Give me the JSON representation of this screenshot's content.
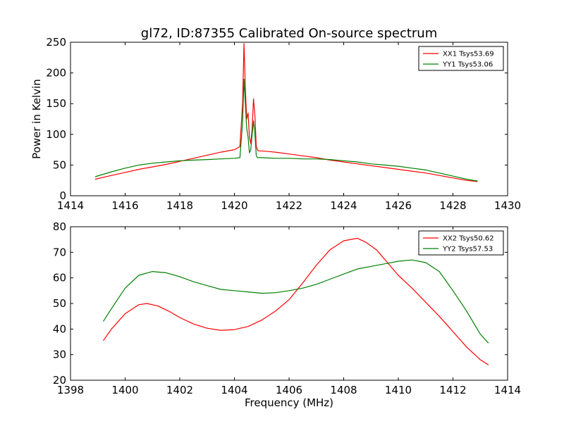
{
  "title": "gl72, ID:87355 Calibrated On-source spectrum",
  "chart_data": [
    {
      "type": "line",
      "title": "gl72, ID:87355 Calibrated On-source spectrum",
      "xlabel": "",
      "ylabel": "Power in Kelvin",
      "xlim": [
        1414,
        1430
      ],
      "ylim": [
        0,
        250
      ],
      "xticks": [
        1414,
        1416,
        1418,
        1420,
        1422,
        1424,
        1426,
        1428,
        1430
      ],
      "yticks": [
        0,
        50,
        100,
        150,
        200,
        250
      ],
      "legend": "top-right",
      "grid": false,
      "series": [
        {
          "name": "XX1 Tsys53.69",
          "color": "#ff0000",
          "x": [
            1414.9,
            1415.5,
            1416.0,
            1416.5,
            1417.0,
            1417.5,
            1418.0,
            1418.5,
            1419.0,
            1419.5,
            1420.0,
            1420.2,
            1420.3,
            1420.35,
            1420.4,
            1420.45,
            1420.5,
            1420.55,
            1420.6,
            1420.65,
            1420.7,
            1420.75,
            1420.8,
            1420.85,
            1420.9,
            1421.0,
            1421.5,
            1422.0,
            1422.5,
            1423.0,
            1423.5,
            1424.0,
            1424.5,
            1425.0,
            1425.5,
            1426.0,
            1426.5,
            1427.0,
            1427.5,
            1428.0,
            1428.5,
            1428.9
          ],
          "y": [
            27,
            33,
            38,
            43,
            47,
            51,
            56,
            61,
            66,
            71,
            75,
            80,
            150,
            248,
            175,
            125,
            135,
            95,
            85,
            110,
            158,
            130,
            80,
            74,
            73,
            73,
            71,
            68,
            65,
            62,
            58,
            55,
            52,
            49,
            46,
            43,
            40,
            37,
            33,
            29,
            25,
            23
          ]
        },
        {
          "name": "YY1 Tsys53.06",
          "color": "#008000",
          "x": [
            1414.9,
            1415.5,
            1416.0,
            1416.5,
            1417.0,
            1417.5,
            1418.0,
            1418.5,
            1419.0,
            1419.5,
            1420.0,
            1420.2,
            1420.3,
            1420.35,
            1420.4,
            1420.45,
            1420.5,
            1420.55,
            1420.6,
            1420.65,
            1420.7,
            1420.75,
            1420.8,
            1420.85,
            1420.9,
            1421.0,
            1421.5,
            1422.0,
            1422.5,
            1423.0,
            1423.5,
            1424.0,
            1424.5,
            1425.0,
            1425.5,
            1426.0,
            1426.5,
            1427.0,
            1427.5,
            1428.0,
            1428.5,
            1428.9
          ],
          "y": [
            31,
            39,
            45,
            50,
            53,
            55,
            57,
            58,
            59,
            60,
            61,
            62,
            120,
            190,
            150,
            110,
            95,
            70,
            75,
            100,
            122,
            100,
            65,
            62,
            62,
            62,
            61,
            61,
            60,
            60,
            59,
            57,
            55,
            52,
            50,
            48,
            45,
            42,
            37,
            32,
            27,
            24
          ]
        }
      ]
    },
    {
      "type": "line",
      "title": "",
      "xlabel": "Frequency (MHz)",
      "ylabel": "",
      "xlim": [
        1398,
        1414
      ],
      "ylim": [
        20,
        80
      ],
      "xticks": [
        1398,
        1400,
        1402,
        1404,
        1406,
        1408,
        1410,
        1412,
        1414
      ],
      "yticks": [
        20,
        30,
        40,
        50,
        60,
        70,
        80
      ],
      "legend": "top-right",
      "grid": false,
      "series": [
        {
          "name": "XX2 Tsys50.62",
          "color": "#ff0000",
          "x": [
            1399.2,
            1399.5,
            1400.0,
            1400.5,
            1400.8,
            1401.2,
            1401.6,
            1402.0,
            1402.5,
            1403.0,
            1403.5,
            1404.0,
            1404.5,
            1405.0,
            1405.5,
            1406.0,
            1406.5,
            1407.0,
            1407.5,
            1408.0,
            1408.5,
            1408.8,
            1409.2,
            1409.6,
            1410.0,
            1410.5,
            1411.0,
            1411.5,
            1412.0,
            1412.5,
            1413.0,
            1413.3
          ],
          "y": [
            35.5,
            40,
            46,
            49.5,
            50,
            49,
            47,
            44.5,
            42,
            40.3,
            39.5,
            39.8,
            41,
            43.5,
            47,
            51.5,
            58,
            65,
            71,
            74.5,
            75.5,
            74,
            71,
            66,
            61,
            56,
            50.5,
            45,
            39,
            33,
            28,
            26
          ]
        },
        {
          "name": "YY2 Tsys57.53",
          "color": "#008000",
          "x": [
            1399.2,
            1399.5,
            1400.0,
            1400.5,
            1401.0,
            1401.5,
            1402.0,
            1402.5,
            1403.0,
            1403.5,
            1404.0,
            1404.5,
            1405.0,
            1405.5,
            1406.0,
            1406.5,
            1407.0,
            1407.5,
            1408.0,
            1408.5,
            1409.0,
            1409.5,
            1410.0,
            1410.5,
            1411.0,
            1411.5,
            1412.0,
            1412.5,
            1413.0,
            1413.3
          ],
          "y": [
            43,
            48,
            56,
            61,
            62.5,
            62,
            60.5,
            58.5,
            57,
            55.5,
            55,
            54.5,
            54,
            54.2,
            55,
            56,
            57.5,
            59.5,
            61.5,
            63.5,
            64.5,
            65.5,
            66.5,
            67,
            66,
            62.5,
            55,
            47,
            38,
            34.5
          ]
        }
      ]
    }
  ]
}
